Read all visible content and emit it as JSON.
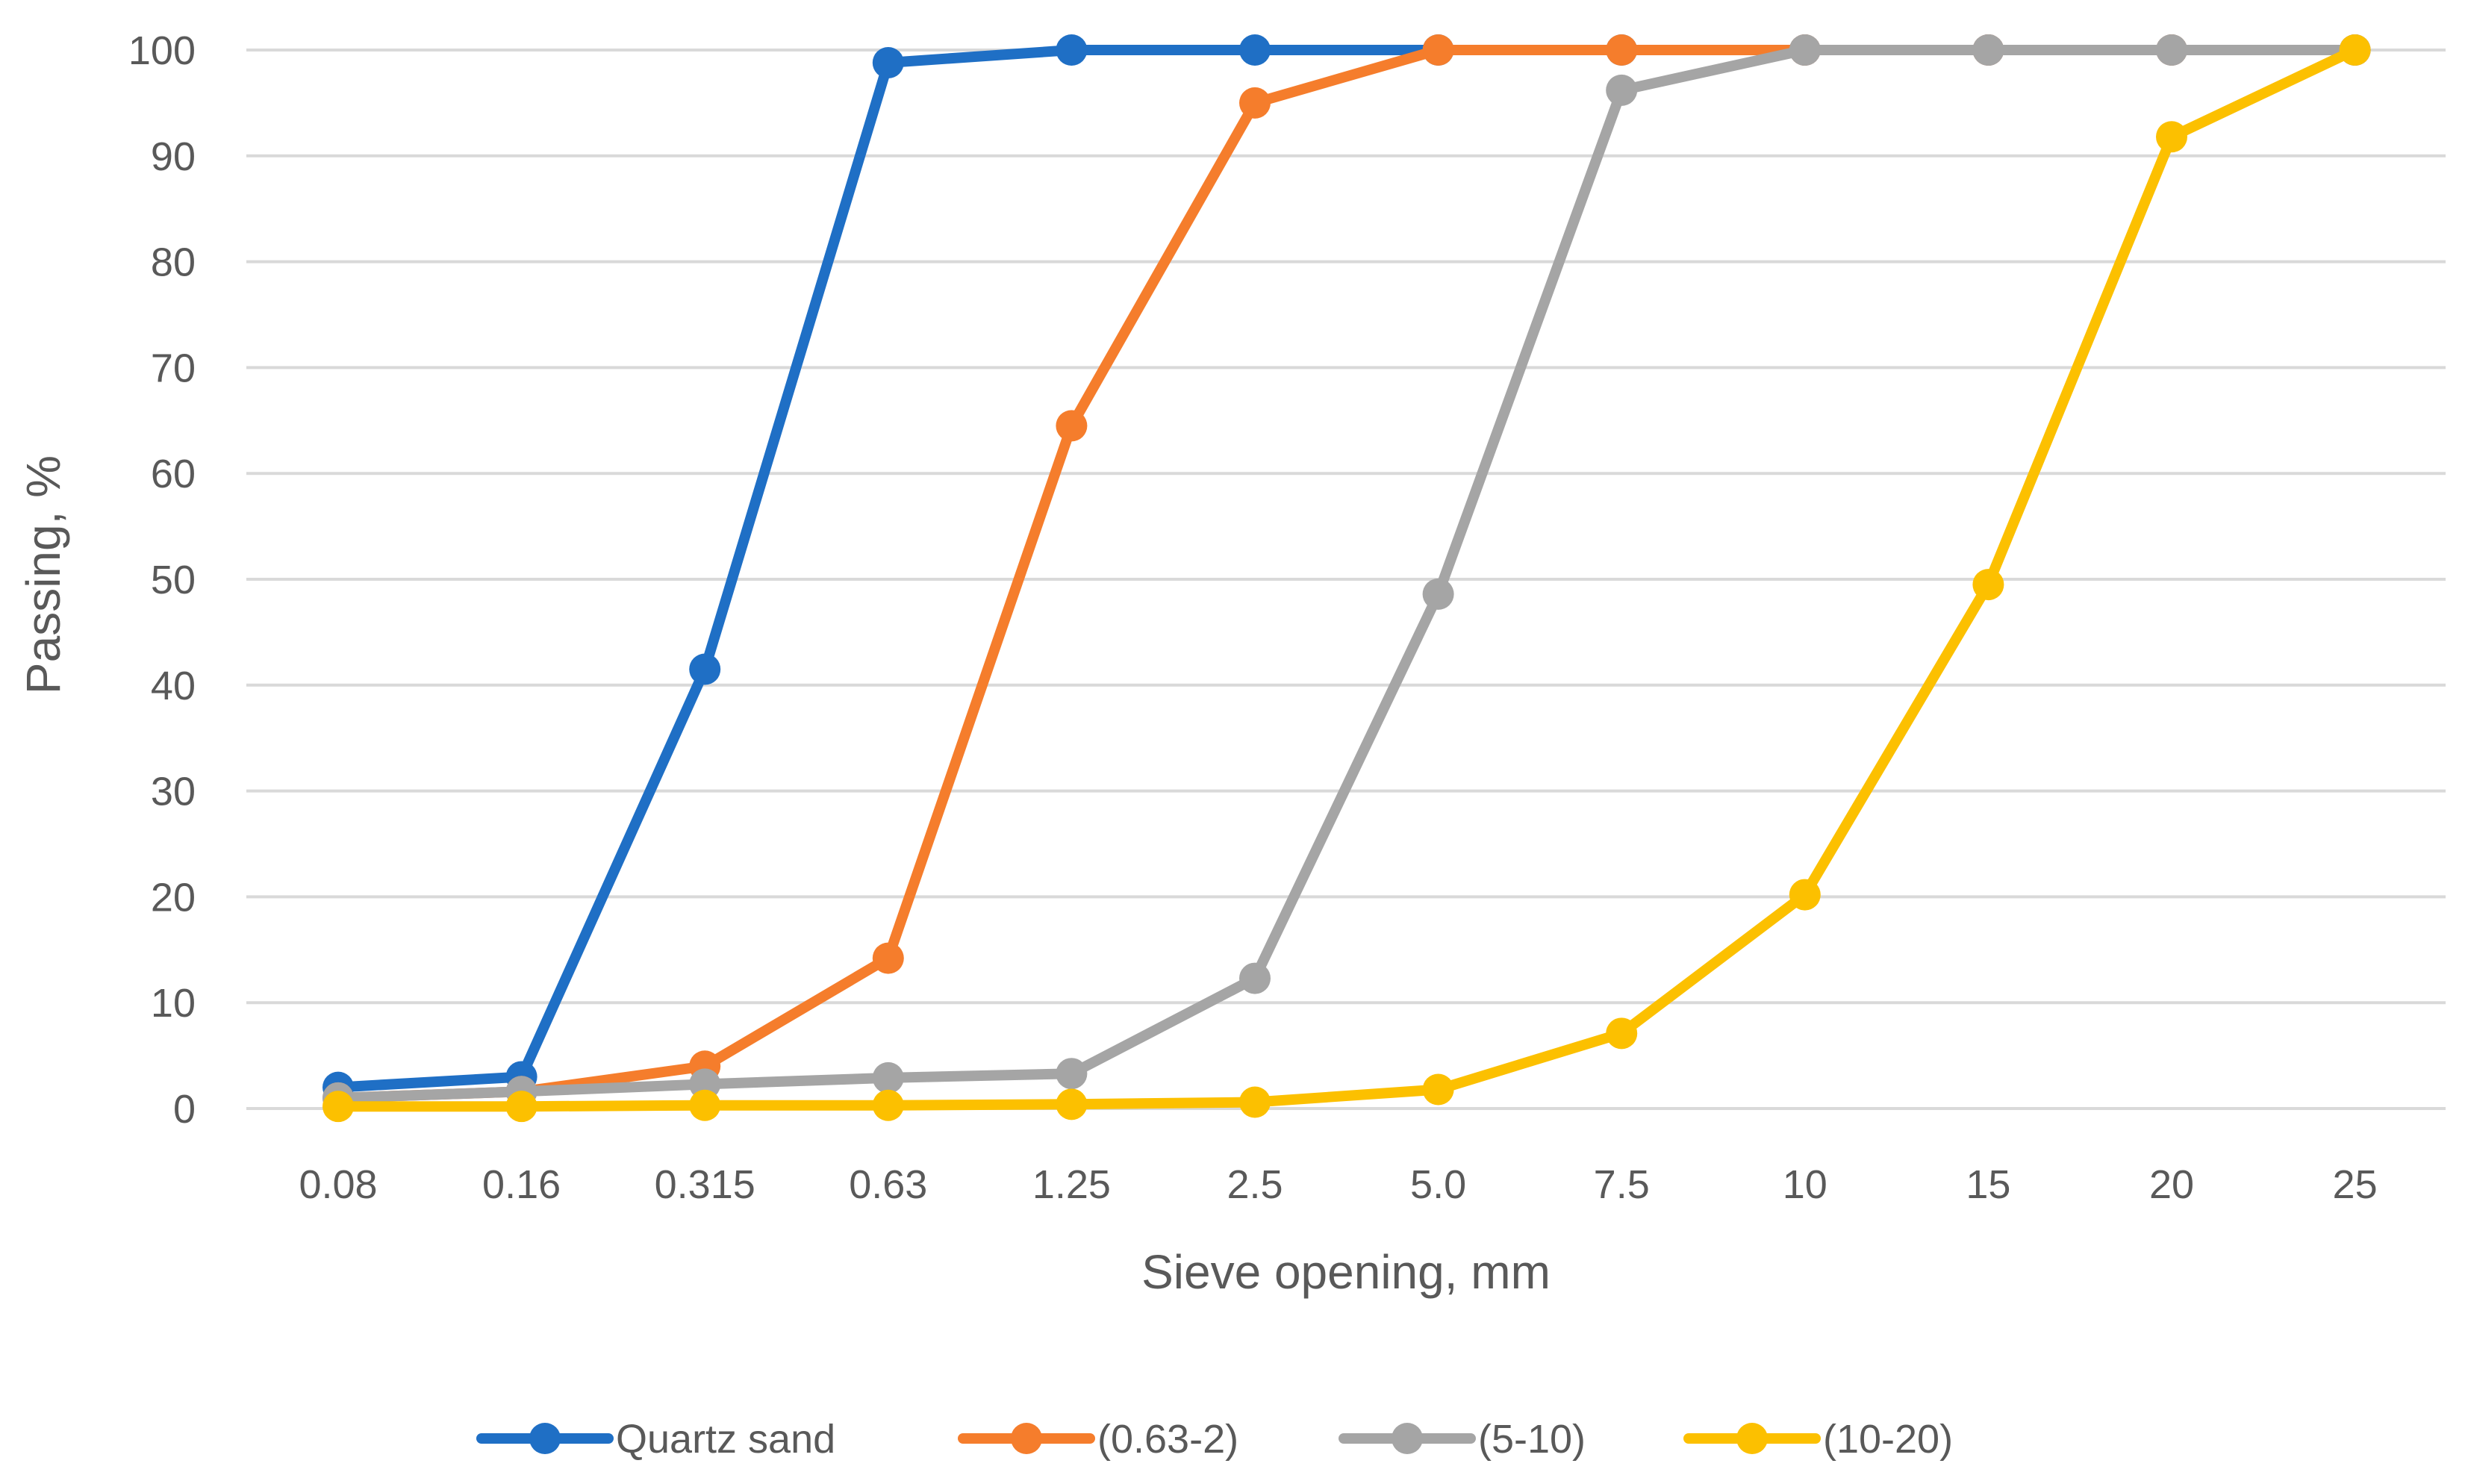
{
  "chart_data": {
    "type": "line",
    "title": "",
    "xlabel": "Sieve opening, mm",
    "ylabel": "Passing, %",
    "categories": [
      "0.08",
      "0.16",
      "0.315",
      "0.63",
      "1.25",
      "2.5",
      "5.0",
      "7.5",
      "10",
      "15",
      "20",
      "25"
    ],
    "ylim": [
      0,
      100
    ],
    "yticks": [
      0,
      10,
      20,
      30,
      40,
      50,
      60,
      70,
      80,
      90,
      100
    ],
    "grid": "horizontal",
    "legend_position": "bottom",
    "series": [
      {
        "name": "Quartz sand",
        "color": "#1f6fc5",
        "values": [
          2,
          3,
          41.5,
          98.8,
          100,
          100,
          100,
          100,
          100,
          100,
          100,
          100
        ]
      },
      {
        "name": "(0.63-2)",
        "color": "#f57d2c",
        "values": [
          1,
          1.6,
          4,
          14.2,
          64.5,
          95,
          100,
          100,
          100,
          100,
          100,
          100
        ]
      },
      {
        "name": "(5-10)",
        "color": "#a5a5a5",
        "values": [
          1,
          1.6,
          2.3,
          2.9,
          3.3,
          12.3,
          48.6,
          96.2,
          100,
          100,
          100,
          100
        ]
      },
      {
        "name": "(10-20)",
        "color": "#fcc000",
        "values": [
          0.2,
          0.2,
          0.3,
          0.3,
          0.4,
          0.6,
          1.8,
          7.1,
          20.2,
          49.5,
          91.8,
          100
        ]
      }
    ]
  }
}
